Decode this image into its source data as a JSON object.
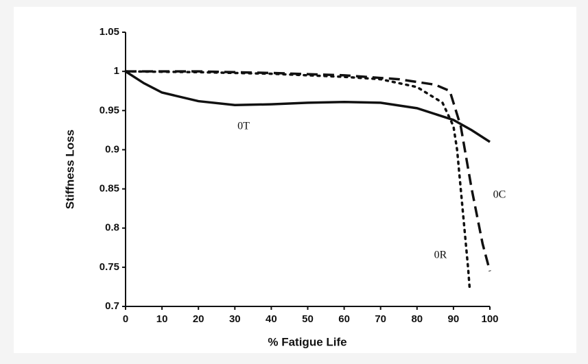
{
  "chart_data": {
    "type": "line",
    "xlabel": "% Fatigue Life",
    "ylabel": "Stiffness Loss",
    "xlim": [
      0,
      100
    ],
    "xticks": [
      0,
      10,
      20,
      30,
      40,
      50,
      60,
      70,
      80,
      90,
      100
    ],
    "ylim": [
      0.7,
      1.05
    ],
    "yticks": [
      0.7,
      0.75,
      0.8,
      0.85,
      0.9,
      0.95,
      1,
      1.05
    ],
    "grid": false,
    "series": [
      {
        "name": "0T",
        "color": "#111111",
        "style": "solid",
        "x": [
          0,
          5,
          10,
          20,
          30,
          40,
          50,
          60,
          70,
          80,
          90,
          95,
          100
        ],
        "values": [
          1,
          0.985,
          0.973,
          0.962,
          0.957,
          0.958,
          0.96,
          0.961,
          0.96,
          0.953,
          0.938,
          0.925,
          0.91
        ]
      },
      {
        "name": "0R",
        "color": "#111111",
        "style": "dotted",
        "x": [
          0,
          20,
          40,
          60,
          70,
          80,
          87,
          90,
          91,
          92,
          93,
          94,
          94.5
        ],
        "values": [
          1,
          0.999,
          0.997,
          0.993,
          0.99,
          0.98,
          0.96,
          0.93,
          0.9,
          0.85,
          0.8,
          0.75,
          0.72
        ]
      },
      {
        "name": "0C",
        "color": "#111111",
        "style": "dashed",
        "x": [
          0,
          20,
          40,
          60,
          75,
          85,
          89,
          92,
          95,
          98,
          100
        ],
        "values": [
          1,
          1,
          0.998,
          0.995,
          0.99,
          0.983,
          0.975,
          0.93,
          0.85,
          0.78,
          0.745
        ]
      }
    ]
  }
}
